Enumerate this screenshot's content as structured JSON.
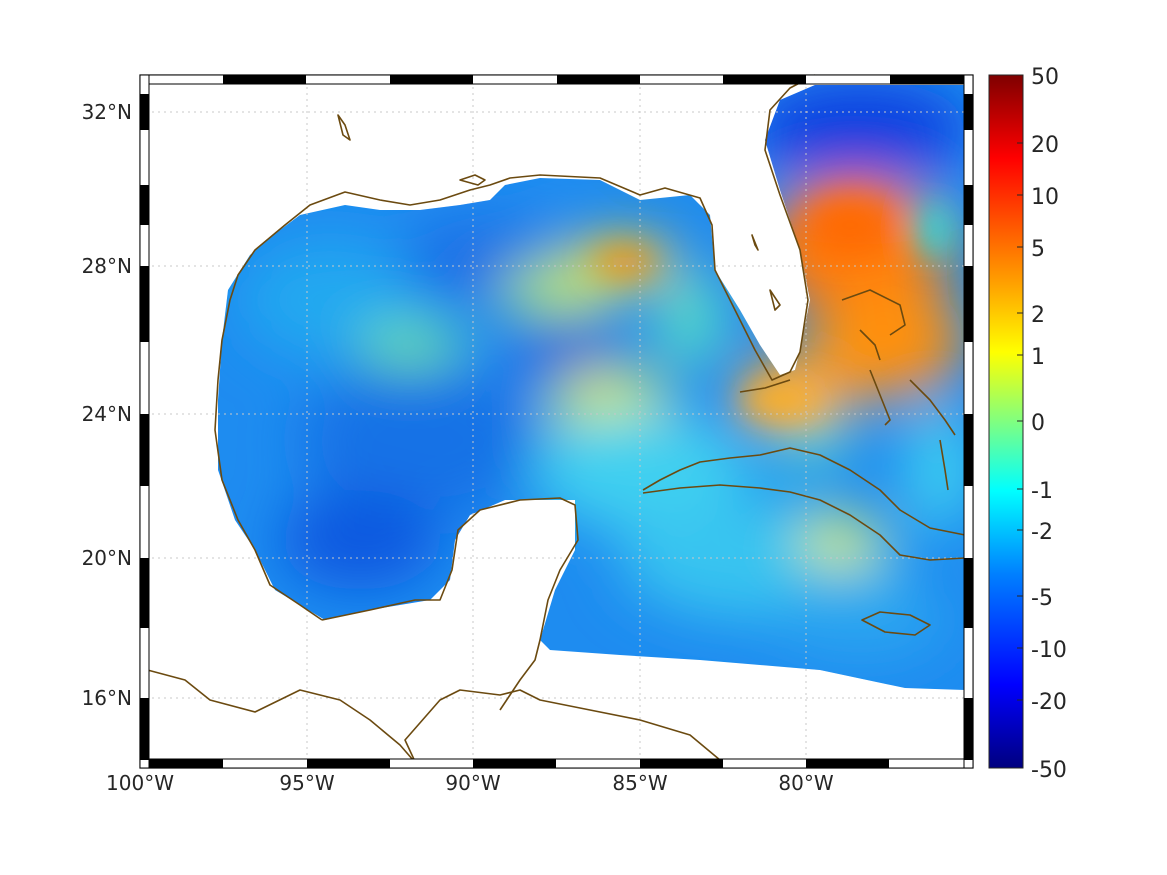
{
  "map": {
    "lat_labels": [
      "32°N",
      "28°N",
      "24°N",
      "20°N",
      "16°N"
    ],
    "lon_labels": [
      "100°W",
      "95°W",
      "90°W",
      "85°W",
      "80°W"
    ],
    "lat_range": [
      14.3,
      33
    ],
    "lon_range": [
      -100,
      -75
    ],
    "grid": "dotted",
    "coastline_color": "#6b4a10",
    "land_color": "#ffffff"
  },
  "colorbar": {
    "labels": [
      "50",
      "20",
      "10",
      "5",
      "2",
      "1",
      "0",
      "-1",
      "-2",
      "-5",
      "-10",
      "-20",
      "-50"
    ],
    "colormap": "jet",
    "placement": "right"
  }
}
